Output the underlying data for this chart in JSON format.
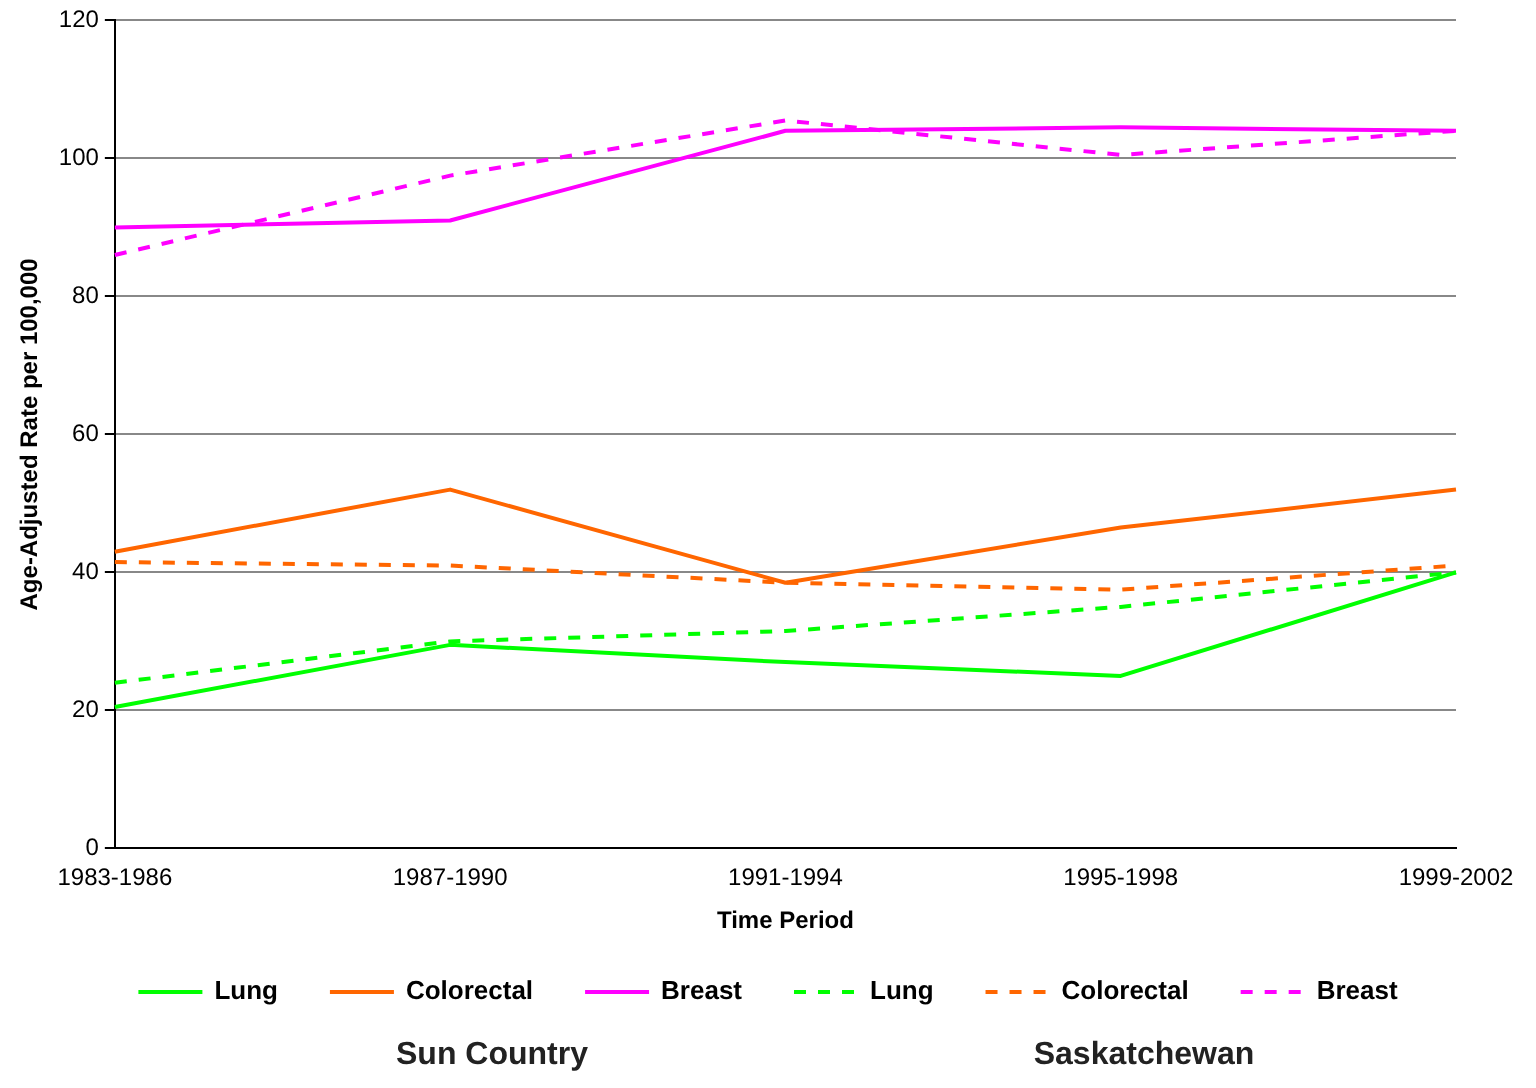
{
  "chart_data": {
    "type": "line",
    "xlabel": "Time Period",
    "ylabel": "Age-Adjusted Rate per 100,000",
    "categories": [
      "1983-1986",
      "1987-1990",
      "1991-1994",
      "1995-1998",
      "1999-2002"
    ],
    "series": [
      {
        "name": "Lung",
        "color": "#00ff00",
        "line_style": "solid",
        "values": [
          20.5,
          29.5,
          27,
          25,
          40
        ]
      },
      {
        "name": "Colorectal",
        "color": "#ff6600",
        "line_style": "solid",
        "values": [
          43,
          52,
          38.5,
          46.5,
          52
        ]
      },
      {
        "name": "Breast",
        "color": "#ff00ff",
        "line_style": "solid",
        "values": [
          90,
          91,
          104,
          104.5,
          104
        ]
      },
      {
        "name": "Lung",
        "color": "#00ff00",
        "line_style": "dashed",
        "values": [
          24,
          30,
          31.5,
          35,
          40
        ]
      },
      {
        "name": "Colorectal",
        "color": "#ff6600",
        "line_style": "dashed",
        "values": [
          41.5,
          41,
          38.5,
          37.5,
          41
        ]
      },
      {
        "name": "Breast",
        "color": "#ff00ff",
        "line_style": "dashed",
        "values": [
          86,
          97.5,
          105.5,
          100.5,
          104
        ]
      }
    ],
    "ylim": [
      0,
      120
    ],
    "yticks": [
      0,
      20,
      40,
      60,
      80,
      100,
      120
    ],
    "grid": "y",
    "legend": "bottom",
    "marker": "none",
    "annotations": [
      "Sun Country",
      "Saskatchewan"
    ]
  }
}
